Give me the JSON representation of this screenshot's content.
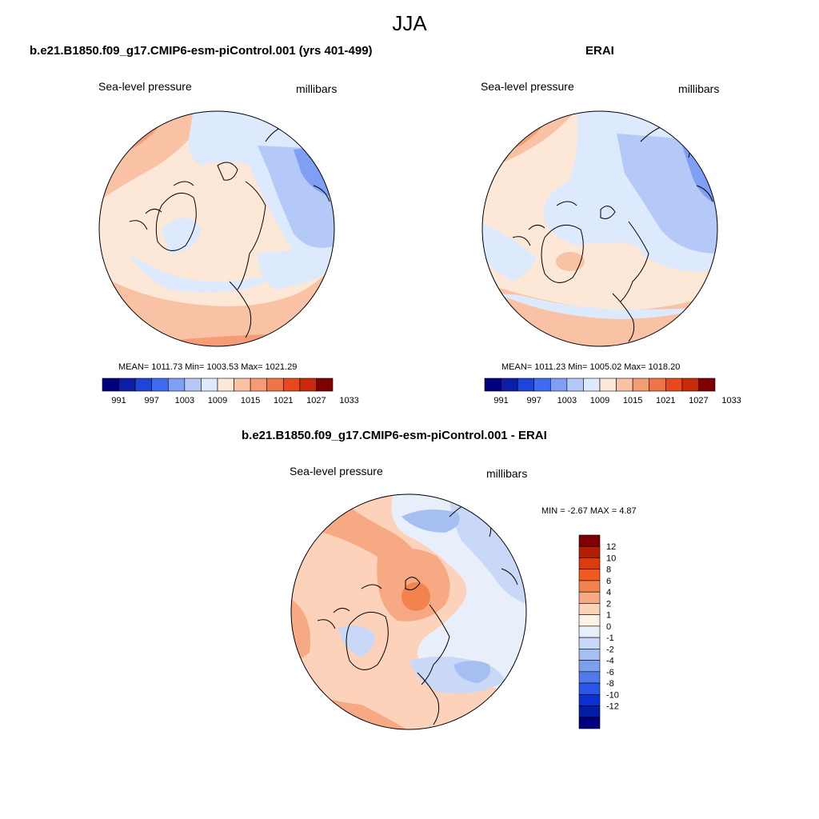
{
  "title": "JJA",
  "panels": {
    "model": {
      "title": "b.e21.B1850.f09_g17.CMIP6-esm-piControl.001 (yrs 401-499)",
      "left_label": "Sea-level pressure",
      "right_label": "millibars",
      "stats": "MEAN= 1011.73  Min= 1003.53  Max= 1021.29"
    },
    "obs": {
      "title": "ERAI",
      "left_label": "Sea-level pressure",
      "right_label": "millibars",
      "stats": "MEAN= 1011.23  Min= 1005.02  Max= 1018.20"
    },
    "diff": {
      "title": "b.e21.B1850.f09_g17.CMIP6-esm-piControl.001 - ERAI",
      "left_label": "Sea-level pressure",
      "right_label": "millibars",
      "stats": "MIN =  -2.67 MAX =   4.87"
    }
  },
  "colorbar_abs": {
    "colors": [
      "#00007f",
      "#0a1ea8",
      "#1f45d8",
      "#3d6cf0",
      "#7f9ff5",
      "#b4c9f7",
      "#dde9fc",
      "#fde8d8",
      "#f9c2a4",
      "#f59c77",
      "#ee7548",
      "#e64a1c",
      "#c8290b",
      "#7f0000"
    ],
    "labels": [
      "991",
      "997",
      "1003",
      "1009",
      "1015",
      "1021",
      "1027",
      "1033"
    ]
  },
  "colorbar_diff": {
    "colors": [
      "#7f0000",
      "#b51c04",
      "#dd3a0e",
      "#f25a1f",
      "#f2834f",
      "#f7a983",
      "#fcd2bb",
      "#fdf0e4",
      "#e8effb",
      "#c9d8f6",
      "#a5bff2",
      "#7c9fee",
      "#5079ea",
      "#2b55e6",
      "#0b2fd0",
      "#041ca5",
      "#00007f"
    ],
    "labels": [
      "12",
      "10",
      "8",
      "6",
      "4",
      "2",
      "1",
      "0",
      "-1",
      "-2",
      "-4",
      "-6",
      "-8",
      "-10",
      "-12"
    ]
  }
}
